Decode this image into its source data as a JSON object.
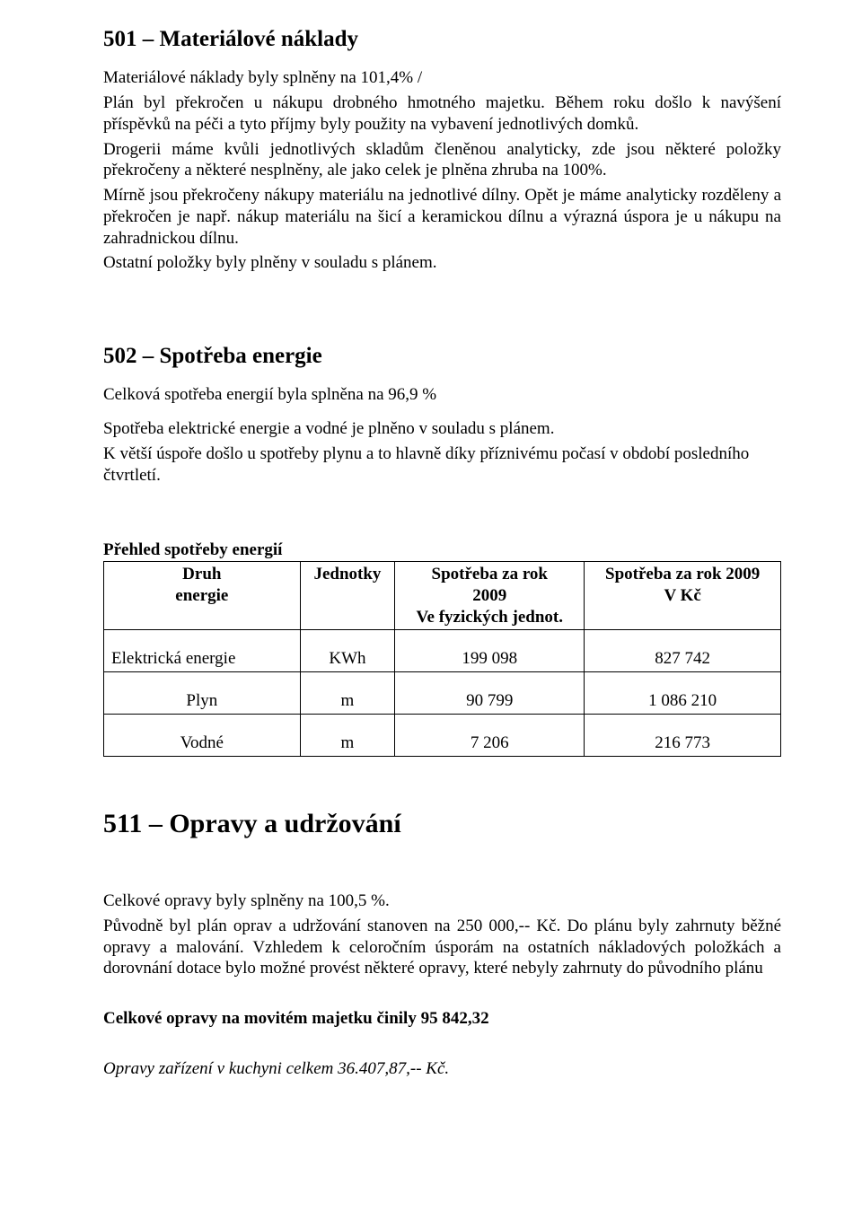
{
  "s501": {
    "title": "501 – Materiálové náklady",
    "p1": "Materiálové náklady byly splněny na 101,4% /",
    "p2": "Plán byl překročen u nákupu drobného hmotného majetku. Během roku došlo k navýšení příspěvků na péči a tyto příjmy byly použity na vybavení jednotlivých domků.",
    "p3": "Drogerii máme kvůli jednotlivých skladům členěnou analyticky, zde jsou některé položky překročeny a některé  nesplněny, ale jako celek je plněna zhruba na 100%.",
    "p4": "Mírně  jsou překročeny nákupy materiálu na jednotlivé dílny. Opět je máme analyticky rozděleny a překročen je např. nákup materiálu na šicí a keramickou dílnu a výrazná úspora je u nákupu na zahradnickou dílnu.",
    "p5": "Ostatní položky byly plněny v souladu s plánem."
  },
  "s502": {
    "title": "502 – Spotřeba energie",
    "p1": "Celková spotřeba energií byla splněna  na 96,9 %",
    "p2": "Spotřeba elektrické energie a vodné je plněno v souladu s plánem.",
    "p3": "K větší úspoře došlo u spotřeby plynu a to hlavně díky příznivému počasí v období posledního čtvrtletí."
  },
  "energyTable": {
    "caption": "Přehled spotřeby energií",
    "headers": {
      "col1a": "Druh",
      "col1b": "energie",
      "col2": "Jednotky",
      "col3a": "Spotřeba za rok",
      "col3b": "2009",
      "col3c": "Ve fyzických jednot.",
      "col4a": "Spotřeba za rok 2009",
      "col4b": "V Kč"
    },
    "rows": [
      {
        "name": "Elektrická energie",
        "unit": "KWh",
        "phys": "199 098",
        "kc": "827 742"
      },
      {
        "name": "Plyn",
        "unit": "m",
        "phys": "90 799",
        "kc": "1 086 210"
      },
      {
        "name": "Vodné",
        "unit": "m",
        "phys": "7 206",
        "kc": "216 773"
      }
    ]
  },
  "s511": {
    "title": "511 – Opravy a udržování",
    "p1": "Celkové opravy byly splněny na 100,5 %.",
    "p2": "Původně byl plán oprav a udržování stanoven na 250 000,-- Kč. Do plánu byly zahrnuty běžné opravy a malování. Vzhledem k celoročním úsporám na ostatních nákladových položkách a dorovnání dotace bylo možné provést některé opravy, které nebyly zahrnuty do původního plánu",
    "p3": "Celkové opravy na movitém majetku činily  95 842,32",
    "p4": "Opravy zařízení v kuchyni celkem  36.407,87,-- Kč."
  }
}
